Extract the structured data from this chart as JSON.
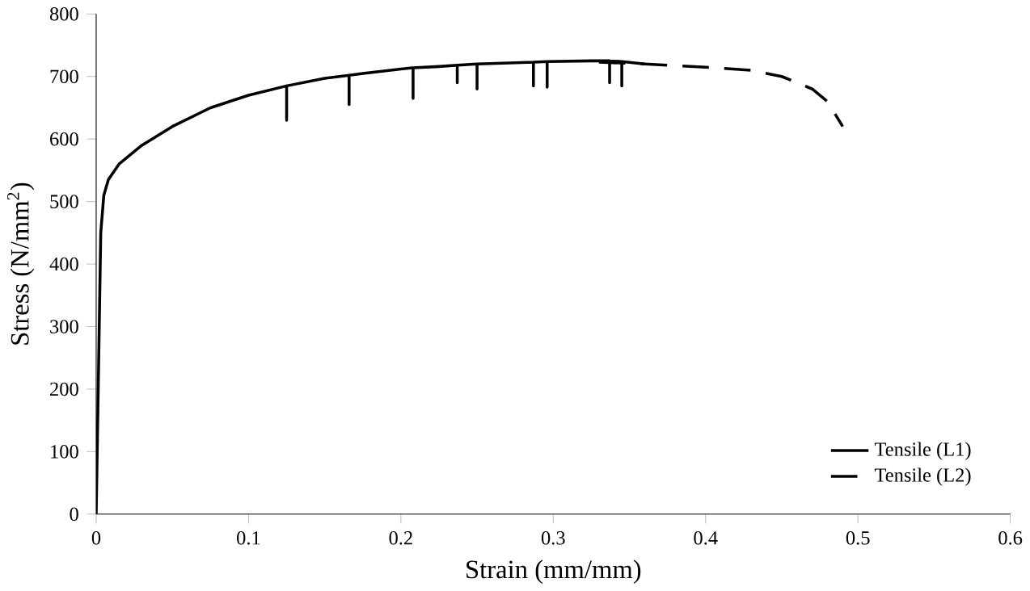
{
  "chart_data": {
    "type": "line",
    "xlabel": "Strain (mm/mm)",
    "ylabel": "Stress (N/mm$^{2}$)",
    "xlim": [
      0,
      0.6
    ],
    "ylim": [
      0,
      800
    ],
    "xticks": [
      0,
      0.1,
      0.2,
      0.3,
      0.4,
      0.5,
      0.6
    ],
    "yticks": [
      0,
      100,
      200,
      300,
      400,
      500,
      600,
      700,
      800
    ],
    "grid": false,
    "legend": "bottom right",
    "marker": "none",
    "series": [
      {
        "name": "Tensile (L1)",
        "color": "#000000",
        "line_style": "solid",
        "x": [
          0,
          0.002,
          0.003,
          0.005,
          0.008,
          0.015,
          0.03,
          0.05,
          0.075,
          0.1,
          0.125,
          0.125,
          0.125,
          0.15,
          0.166,
          0.166,
          0.166,
          0.175,
          0.2,
          0.208,
          0.208,
          0.208,
          0.225,
          0.237,
          0.237,
          0.237,
          0.25,
          0.25,
          0.25,
          0.275,
          0.287,
          0.287,
          0.287,
          0.296,
          0.296,
          0.296,
          0.325,
          0.337,
          0.337,
          0.337,
          0.345,
          0.345,
          0.345,
          0.36
        ],
        "values": [
          0,
          300,
          450,
          510,
          535,
          560,
          590,
          620,
          650,
          670,
          685,
          630,
          685,
          697,
          702,
          655,
          702,
          705,
          712,
          714,
          665,
          714,
          716,
          718,
          690,
          718,
          720,
          680,
          720,
          722,
          723,
          685,
          723,
          724,
          683,
          724,
          725,
          725,
          690,
          725,
          724,
          685,
          724,
          720
        ]
      },
      {
        "name": "Tensile (L2)",
        "color": "#000000",
        "line_style": "dashed",
        "x": [
          0.33,
          0.36,
          0.4,
          0.43,
          0.45,
          0.47,
          0.48,
          0.49
        ],
        "values": [
          723,
          720,
          715,
          710,
          700,
          680,
          660,
          620
        ]
      }
    ]
  }
}
